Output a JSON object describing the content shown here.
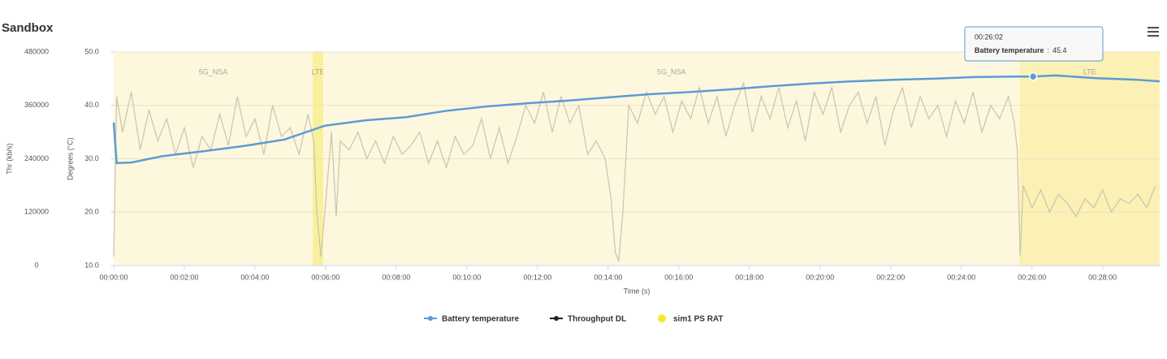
{
  "chart_data": {
    "type": "line",
    "title": "Sandbox",
    "x_label": "Time (s)",
    "y_label": "Thr (kb/s)",
    "y2_label": "Degrees (°C)",
    "xlim": [
      0,
      1777
    ],
    "xticks": [
      {
        "value": 0,
        "label": "00:00:00"
      },
      {
        "value": 120,
        "label": "00:02:00"
      },
      {
        "value": 240,
        "label": "00:04:00"
      },
      {
        "value": 360,
        "label": "00:06:00"
      },
      {
        "value": 480,
        "label": "00:08:00"
      },
      {
        "value": 600,
        "label": "00:10:00"
      },
      {
        "value": 720,
        "label": "00:12:00"
      },
      {
        "value": 840,
        "label": "00:14:00"
      },
      {
        "value": 960,
        "label": "00:16:00"
      },
      {
        "value": 1080,
        "label": "00:18:00"
      },
      {
        "value": 1200,
        "label": "00:20:00"
      },
      {
        "value": 1320,
        "label": "00:22:00"
      },
      {
        "value": 1440,
        "label": "00:24:00"
      },
      {
        "value": 1560,
        "label": "00:26:00"
      },
      {
        "value": 1680,
        "label": "00:28:00"
      }
    ],
    "ylim": [
      0,
      480000
    ],
    "yticks": [
      0,
      120000,
      240000,
      360000,
      480000
    ],
    "y2lim": [
      10,
      50
    ],
    "y2ticks": [
      {
        "value": 10,
        "label": "10.0"
      },
      {
        "value": 20,
        "label": "20.0"
      },
      {
        "value": 30,
        "label": "30.0"
      },
      {
        "value": 40,
        "label": "40.0"
      },
      {
        "value": 50,
        "label": "50.0"
      }
    ],
    "grid": true,
    "series": [
      {
        "name": "Battery temperature",
        "color": "#5b9bd5",
        "axis": "y2",
        "x": [
          0,
          5,
          30,
          83,
          152,
          221,
          290,
          359,
          428,
          497,
          566,
          634,
          703,
          772,
          841,
          910,
          979,
          1048,
          1117,
          1186,
          1255,
          1324,
          1393,
          1462,
          1531,
          1562,
          1600,
          1669,
          1738,
          1777
        ],
        "values": [
          36.8,
          29.2,
          29.3,
          30.5,
          31.4,
          32.4,
          33.6,
          36.2,
          37.2,
          37.8,
          39.0,
          39.8,
          40.4,
          40.9,
          41.5,
          42.1,
          42.5,
          43.0,
          43.6,
          44.1,
          44.5,
          44.8,
          45.0,
          45.3,
          45.4,
          45.4,
          45.6,
          45.1,
          44.8,
          44.5
        ]
      },
      {
        "name": "Throughput DL",
        "color": "#cbc6b4",
        "legend_color": "#222222",
        "x": [
          0,
          5,
          15,
          30,
          45,
          60,
          75,
          90,
          105,
          120,
          135,
          150,
          165,
          180,
          195,
          210,
          225,
          240,
          255,
          270,
          285,
          300,
          315,
          330,
          340,
          345,
          352,
          360,
          370,
          378,
          385,
          400,
          415,
          430,
          445,
          460,
          475,
          490,
          505,
          520,
          535,
          550,
          565,
          580,
          595,
          610,
          625,
          640,
          655,
          670,
          685,
          700,
          715,
          730,
          745,
          760,
          775,
          790,
          805,
          820,
          835,
          845,
          852,
          858,
          865,
          875,
          890,
          905,
          920,
          935,
          950,
          965,
          980,
          995,
          1010,
          1025,
          1040,
          1055,
          1070,
          1085,
          1100,
          1115,
          1130,
          1145,
          1160,
          1175,
          1190,
          1205,
          1220,
          1235,
          1250,
          1265,
          1280,
          1295,
          1310,
          1325,
          1340,
          1355,
          1370,
          1385,
          1400,
          1415,
          1430,
          1445,
          1460,
          1475,
          1490,
          1505,
          1520,
          1530,
          1535,
          1540,
          1545,
          1560,
          1575,
          1590,
          1605,
          1620,
          1635,
          1650,
          1665,
          1680,
          1695,
          1710,
          1725,
          1740,
          1755,
          1770
        ],
        "values": [
          20000,
          380000,
          300000,
          390000,
          260000,
          350000,
          280000,
          330000,
          250000,
          310000,
          220000,
          290000,
          260000,
          340000,
          270000,
          380000,
          290000,
          330000,
          250000,
          360000,
          290000,
          310000,
          250000,
          340000,
          280000,
          120000,
          20000,
          140000,
          300000,
          110000,
          280000,
          260000,
          300000,
          240000,
          280000,
          230000,
          290000,
          250000,
          270000,
          300000,
          230000,
          280000,
          220000,
          290000,
          250000,
          270000,
          330000,
          240000,
          310000,
          230000,
          290000,
          360000,
          320000,
          390000,
          300000,
          380000,
          320000,
          360000,
          250000,
          280000,
          240000,
          150000,
          30000,
          10000,
          120000,
          360000,
          320000,
          390000,
          340000,
          380000,
          300000,
          370000,
          330000,
          400000,
          320000,
          380000,
          290000,
          360000,
          410000,
          300000,
          380000,
          330000,
          400000,
          310000,
          370000,
          280000,
          390000,
          340000,
          400000,
          300000,
          360000,
          390000,
          320000,
          380000,
          270000,
          350000,
          400000,
          310000,
          380000,
          330000,
          360000,
          290000,
          370000,
          320000,
          390000,
          300000,
          360000,
          330000,
          380000,
          320000,
          260000,
          20000,
          180000,
          130000,
          170000,
          120000,
          160000,
          140000,
          110000,
          150000,
          130000,
          170000,
          120000,
          150000,
          140000,
          160000,
          130000,
          180000
        ]
      }
    ],
    "bands": {
      "name": "sim1 PS RAT",
      "legend_color": "#f2ea2c",
      "items": [
        {
          "label": "5G_NSA",
          "start": 0,
          "end": 338,
          "color": "#fdf8dd"
        },
        {
          "label": "LTE",
          "start": 338,
          "end": 356,
          "color": "#f9f09c"
        },
        {
          "label": "5G_NSA",
          "start": 356,
          "end": 1539,
          "color": "#fdf8dd"
        },
        {
          "label": "LTE",
          "start": 1539,
          "end": 1777,
          "color": "#fbf1b4"
        }
      ]
    },
    "tooltip": {
      "title": "00:26:02",
      "series": 0,
      "separator": ":",
      "x": 1562,
      "value": 45.4
    }
  }
}
